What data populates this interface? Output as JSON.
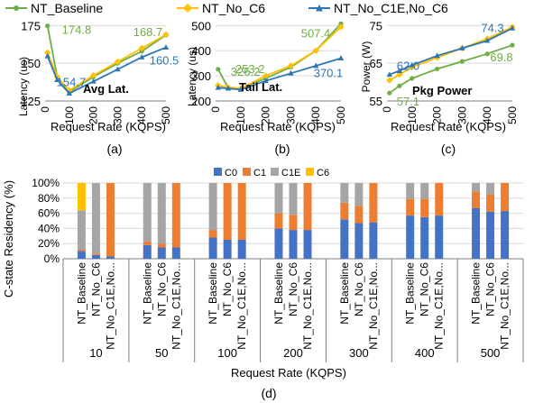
{
  "colors": {
    "baseline": "#70AD47",
    "no_c6": "#FFC000",
    "no_c1e_c6": "#2E75B6",
    "c0": "#4472C4",
    "c1": "#ED7D31",
    "c1e": "#A5A5A5",
    "c6": "#FFC000",
    "grid": "#D9D9D9",
    "axis": "#7F7F7F",
    "text": "#000000"
  },
  "legend_top": [
    "NT_Baseline",
    "NT_No_C6",
    "NT_No_C1E,No_C6"
  ],
  "legend_bottom": [
    "C0",
    "C1",
    "C1E",
    "C6"
  ],
  "chart_data": [
    {
      "type": "line",
      "panel": "(a)",
      "title": "Avg Lat.",
      "xlabel": "Request Rate (KQPS)",
      "ylabel": "Latency (us)",
      "x": [
        10,
        50,
        100,
        200,
        300,
        400,
        500
      ],
      "xticks": [
        0,
        100,
        200,
        300,
        400,
        500
      ],
      "xlim": [
        0,
        500
      ],
      "yticks": [
        125,
        150,
        175
      ],
      "ylim": [
        125,
        180
      ],
      "series": [
        {
          "name": "NT_Baseline",
          "color": "baseline",
          "values": [
            174.8,
            141.0,
            131.0,
            141.0,
            150.0,
            158.0,
            168.7
          ]
        },
        {
          "name": "NT_No_C6",
          "color": "no_c6",
          "values": [
            157.0,
            141.0,
            132.0,
            142.0,
            151.0,
            160.0,
            169.0
          ]
        },
        {
          "name": "NT_No_C1E,No_C6",
          "color": "no_c1e_c6",
          "values": [
            154.7,
            139.0,
            130.0,
            138.0,
            146.0,
            154.0,
            160.5
          ]
        }
      ],
      "annotations": [
        {
          "text": "174.8",
          "series": "NT_Baseline"
        },
        {
          "text": "168.7",
          "series": "NT_Baseline"
        },
        {
          "text": "154.7",
          "series": "NT_No_C1E,No_C6"
        },
        {
          "text": "160.5",
          "series": "NT_No_C1E,No_C6"
        }
      ]
    },
    {
      "type": "line",
      "panel": "(b)",
      "title": "Tail Lat.",
      "xlabel": "Request Rate (KQPS)",
      "ylabel": "Latency (us)",
      "x": [
        10,
        50,
        100,
        200,
        300,
        400,
        500
      ],
      "xticks": [
        0,
        100,
        200,
        300,
        400,
        500
      ],
      "xlim": [
        0,
        500
      ],
      "yticks": [
        200,
        300,
        400,
        500
      ],
      "ylim": [
        200,
        530
      ],
      "series": [
        {
          "name": "NT_Baseline",
          "color": "baseline",
          "values": [
            326.2,
            253.2,
            250.0,
            290.0,
            335.0,
            400.0,
            507.4
          ]
        },
        {
          "name": "NT_No_C6",
          "color": "no_c6",
          "values": [
            262.0,
            255.0,
            250.0,
            300.0,
            340.0,
            400.0,
            495.0
          ]
        },
        {
          "name": "NT_No_C1E,No_C6",
          "color": "no_c1e_c6",
          "values": [
            253.0,
            250.0,
            245.0,
            280.0,
            310.0,
            340.0,
            370.1
          ]
        }
      ],
      "annotations": [
        {
          "text": "326.2",
          "series": "NT_Baseline"
        },
        {
          "text": "253.2",
          "series": "NT_Baseline"
        },
        {
          "text": "507.4",
          "series": "NT_Baseline"
        },
        {
          "text": "370.1",
          "series": "NT_No_C1E,No_C6"
        }
      ]
    },
    {
      "type": "line",
      "panel": "(c)",
      "title": "Pkg Power",
      "xlabel": "Request Rate (KQPS)",
      "ylabel": "Power (W)",
      "x": [
        10,
        50,
        100,
        200,
        300,
        400,
        500
      ],
      "xticks": [
        0,
        100,
        200,
        300,
        400,
        500
      ],
      "xlim": [
        0,
        500
      ],
      "yticks": [
        55,
        65,
        75
      ],
      "ylim": [
        55,
        77
      ],
      "series": [
        {
          "name": "NT_Baseline",
          "color": "baseline",
          "values": [
            57.1,
            59.0,
            61.0,
            63.5,
            65.5,
            67.5,
            69.8
          ]
        },
        {
          "name": "NT_No_C6",
          "color": "no_c6",
          "values": [
            60.5,
            62.0,
            64.0,
            66.5,
            69.0,
            71.5,
            74.6
          ]
        },
        {
          "name": "NT_No_C1E,No_C6",
          "color": "no_c1e_c6",
          "values": [
            62.0,
            63.0,
            64.5,
            67.0,
            69.0,
            71.0,
            74.3
          ]
        }
      ],
      "annotations": [
        {
          "text": "62.0",
          "series": "NT_No_C1E,No_C6"
        },
        {
          "text": "74.3",
          "series": "NT_No_C1E,No_C6"
        },
        {
          "text": "57.1",
          "series": "NT_Baseline"
        },
        {
          "text": "69.8",
          "series": "NT_Baseline"
        }
      ]
    },
    {
      "type": "bar",
      "stacked": true,
      "panel": "(d)",
      "xlabel": "Request Rate (KQPS)",
      "ylabel": "C-state Residency (%)",
      "yticks": [
        "0%",
        "20%",
        "40%",
        "60%",
        "80%",
        "100%"
      ],
      "ylim": [
        0,
        100
      ],
      "grid": true,
      "legend_position": "top",
      "groups": [
        "10",
        "50",
        "100",
        "200",
        "300",
        "400",
        "500"
      ],
      "configs": [
        "NT_Baseline",
        "NT_No_C6",
        "NT_No_C1E,No..."
      ],
      "states": [
        "C0",
        "C1",
        "C1E",
        "C6"
      ],
      "values": [
        [
          [
            10,
            2,
            52,
            36
          ],
          [
            5,
            2,
            93,
            0
          ],
          [
            3,
            97,
            0,
            0
          ]
        ],
        [
          [
            18,
            5,
            77,
            0
          ],
          [
            15,
            5,
            80,
            0
          ],
          [
            15,
            85,
            0,
            0
          ]
        ],
        [
          [
            28,
            10,
            62,
            0
          ],
          [
            25,
            75,
            0,
            0
          ],
          [
            25,
            75,
            0,
            0
          ]
        ],
        [
          [
            40,
            20,
            40,
            0
          ],
          [
            38,
            20,
            42,
            0
          ],
          [
            38,
            62,
            0,
            0
          ]
        ],
        [
          [
            52,
            22,
            26,
            0
          ],
          [
            47,
            23,
            30,
            0
          ],
          [
            48,
            52,
            0,
            0
          ]
        ],
        [
          [
            57,
            22,
            21,
            0
          ],
          [
            55,
            24,
            21,
            0
          ],
          [
            57,
            43,
            0,
            0
          ]
        ],
        [
          [
            67,
            22,
            11,
            0
          ],
          [
            62,
            23,
            15,
            0
          ],
          [
            63,
            37,
            0,
            0
          ]
        ]
      ]
    }
  ],
  "panel_labels": [
    "(a)",
    "(b)",
    "(c)",
    "(d)"
  ]
}
